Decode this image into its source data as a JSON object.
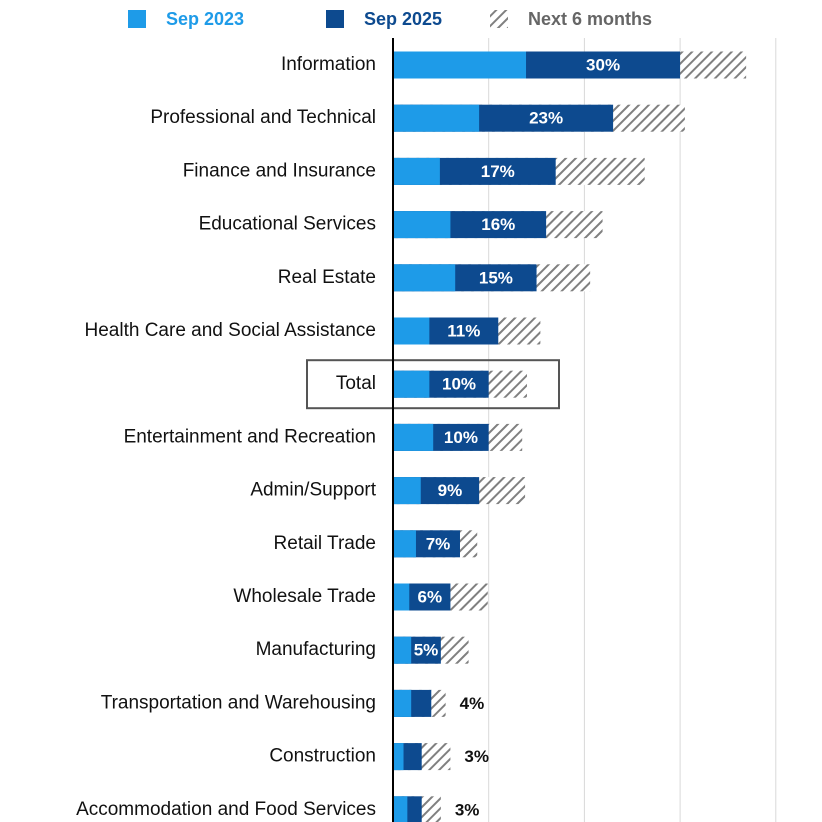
{
  "chart_data": {
    "type": "overlap-bar",
    "orientation": "horizontal",
    "categories": [
      "Information",
      "Professional and Technical",
      "Finance and Insurance",
      "Educational Services",
      "Real Estate",
      "Health Care and Social Assistance",
      "Total",
      "Entertainment and Recreation",
      "Admin/Support",
      "Retail Trade",
      "Wholesale Trade",
      "Manufacturing",
      "Transportation and Warehousing",
      "Construction",
      "Accommodation and Food Services"
    ],
    "series": [
      {
        "name": "Next 6 months",
        "color": "#808080",
        "pattern": "hatch",
        "values": [
          36.9,
          30.5,
          26.3,
          21.9,
          20.6,
          15.4,
          14.0,
          13.5,
          13.8,
          8.8,
          9.9,
          7.9,
          5.5,
          6.0,
          5.0
        ]
      },
      {
        "name": "Sep 2025",
        "color": "#0d4a8f",
        "values": [
          30,
          23,
          17,
          16,
          15,
          11,
          10,
          10,
          9,
          7,
          6,
          5,
          4,
          3,
          3
        ],
        "value_labels": [
          "30%",
          "23%",
          "17%",
          "16%",
          "15%",
          "11%",
          "10%",
          "10%",
          "9%",
          "7%",
          "6%",
          "5%",
          "4%",
          "3%",
          "3%"
        ]
      },
      {
        "name": "Sep 2023",
        "color": "#1e9be8",
        "values": [
          13.9,
          9.0,
          4.9,
          6.0,
          6.5,
          3.8,
          3.8,
          4.2,
          2.9,
          2.4,
          1.7,
          1.9,
          1.9,
          1.1,
          1.5
        ]
      }
    ],
    "xlim": [
      0,
      44
    ],
    "xticks": [
      10,
      20,
      30,
      40
    ],
    "grid": true
  }
}
